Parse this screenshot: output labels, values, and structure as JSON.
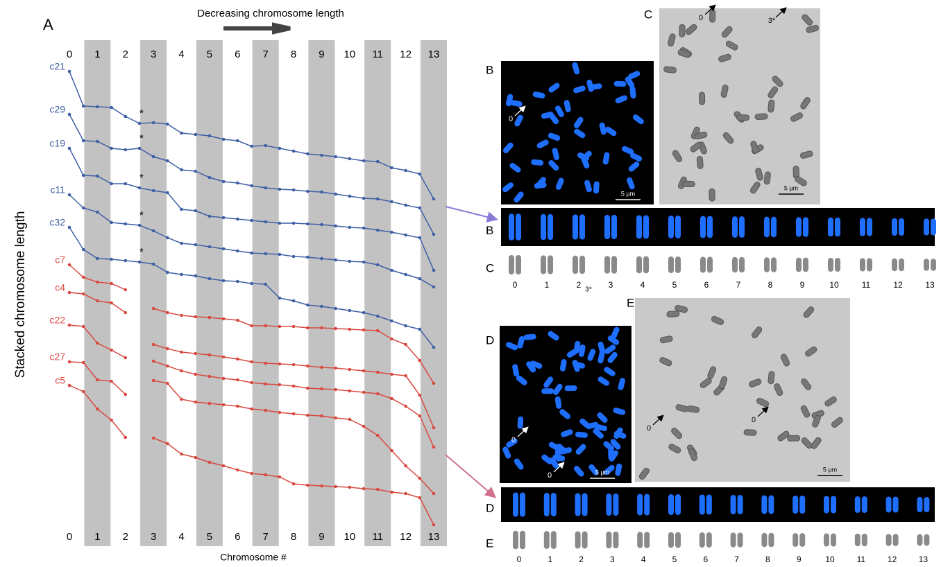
{
  "chart_data": {
    "type": "line",
    "panel_label": "A",
    "title": "Decreasing chromosome length",
    "ylabel": "Stacked chromosome length",
    "xlabel": "Chromosome #",
    "x": [
      0,
      0.5,
      1,
      1.5,
      2,
      2.5,
      3,
      3.5,
      4,
      4.5,
      5,
      5.5,
      6,
      6.5,
      7,
      7.5,
      8,
      8.5,
      9,
      9.5,
      10,
      10.5,
      11,
      11.5,
      12,
      12.5,
      13
    ],
    "xlim": [
      0,
      13
    ],
    "xticks": [
      0,
      1,
      2,
      3,
      4,
      5,
      6,
      7,
      8,
      9,
      10,
      11,
      12,
      13
    ],
    "ylim": [
      0,
      720
    ],
    "band_color": "#c2c2c2",
    "series": [
      {
        "name": "c21",
        "color": "#3d5fa6",
        "values": [
          677,
          627,
          626,
          625,
          612,
          602,
          603,
          601,
          588,
          586,
          584,
          579,
          577,
          569,
          570,
          566,
          562,
          558,
          556,
          554,
          551,
          548,
          547,
          538,
          534,
          529,
          493
        ]
      },
      {
        "name": "c29",
        "color": "#3d5fa6",
        "values": [
          615,
          577,
          576,
          566,
          564,
          566,
          554,
          548,
          535,
          533,
          524,
          518,
          516,
          512,
          509,
          507,
          506,
          504,
          503,
          500,
          497,
          494,
          493,
          489,
          484,
          480,
          442
        ]
      },
      {
        "name": "c19",
        "color": "#3d5fa6",
        "values": [
          566,
          527,
          526,
          515,
          515,
          509,
          505,
          502,
          478,
          476,
          468,
          466,
          464,
          462,
          460,
          458,
          458,
          457,
          456,
          454,
          452,
          451,
          448,
          445,
          441,
          437,
          390
        ]
      },
      {
        "name": "c11",
        "color": "#3d5fa6",
        "values": [
          499,
          480,
          474,
          459,
          457,
          455,
          447,
          437,
          429,
          427,
          424,
          421,
          418,
          415,
          414,
          413,
          410,
          409,
          407,
          405,
          403,
          402,
          398,
          390,
          384,
          378,
          366
        ]
      },
      {
        "name": "c32",
        "color": "#3d5fa6",
        "values": [
          452,
          420,
          407,
          406,
          404,
          402,
          399,
          387,
          384,
          382,
          378,
          375,
          374,
          371,
          370,
          350,
          346,
          340,
          338,
          335,
          332,
          329,
          324,
          317,
          310,
          305,
          279
        ]
      },
      {
        "name": "c7",
        "color": "#d9483f",
        "values": [
          398,
          380,
          373,
          371,
          362,
          null,
          335,
          329,
          325,
          323,
          322,
          320,
          318,
          310,
          310,
          309,
          309,
          307,
          307,
          306,
          305,
          304,
          303,
          291,
          283,
          260,
          227
        ]
      },
      {
        "name": "c4",
        "color": "#d9483f",
        "values": [
          358,
          356,
          346,
          343,
          329,
          null,
          283,
          277,
          272,
          270,
          268,
          265,
          262,
          258,
          256,
          255,
          254,
          252,
          250,
          249,
          247,
          245,
          243,
          240,
          238,
          210,
          163
        ]
      },
      {
        "name": "c22",
        "color": "#d9483f",
        "values": [
          311,
          309,
          285,
          275,
          264,
          null,
          259,
          252,
          245,
          240,
          237,
          234,
          232,
          228,
          226,
          225,
          223,
          220,
          219,
          218,
          216,
          214,
          212,
          205,
          194,
          180,
          135
        ]
      },
      {
        "name": "c27",
        "color": "#d9483f",
        "values": [
          258,
          257,
          232,
          230,
          211,
          null,
          231,
          227,
          204,
          200,
          198,
          196,
          194,
          190,
          188,
          185,
          183,
          181,
          180,
          177,
          175,
          165,
          152,
          130,
          108,
          90,
          68
        ]
      },
      {
        "name": "c5",
        "color": "#d9483f",
        "values": [
          224,
          215,
          190,
          174,
          149,
          null,
          148,
          140,
          125,
          120,
          113,
          108,
          102,
          97,
          95,
          92,
          82,
          80,
          79,
          78,
          77,
          75,
          74,
          70,
          68,
          62,
          23
        ]
      }
    ],
    "annotations": [
      "*",
      "*",
      "*",
      "*",
      "*"
    ]
  },
  "panel_b": {
    "label": "B",
    "scale_bar": "5 µm",
    "arrow_labels": [
      "0"
    ]
  },
  "panel_c": {
    "label": "C",
    "scale_bar": "5 µm",
    "arrow_labels": [
      "0",
      "3*"
    ]
  },
  "panel_d": {
    "label": "D",
    "scale_bar": "5 µm",
    "arrow_labels": [
      "0",
      "0"
    ]
  },
  "panel_e": {
    "label": "E",
    "scale_bar": "5 µm",
    "arrow_labels": [
      "0",
      "0"
    ]
  },
  "karyotypes": [
    {
      "label": "B"
    },
    {
      "label": "C",
      "numbers": [
        0,
        1,
        2,
        3,
        4,
        5,
        6,
        7,
        8,
        9,
        10,
        11,
        12,
        13
      ],
      "marker": "3*"
    },
    {
      "label": "D"
    },
    {
      "label": "E",
      "numbers": [
        0,
        1,
        2,
        3,
        4,
        5,
        6,
        7,
        8,
        9,
        10,
        11,
        12,
        13
      ]
    }
  ]
}
